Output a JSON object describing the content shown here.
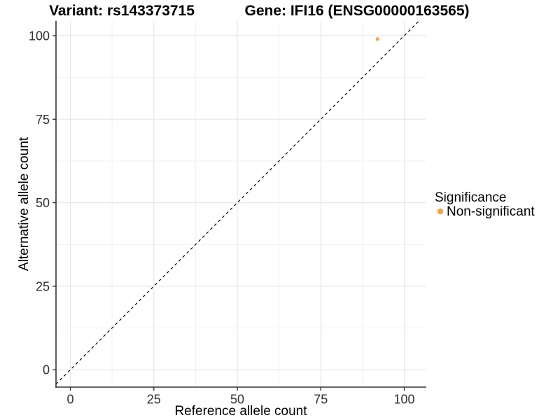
{
  "chart_data": {
    "type": "scatter",
    "titles": [
      {
        "text": "Variant: rs143373715"
      },
      {
        "text": "Gene: IFI16 (ENSG00000163565)"
      }
    ],
    "xlabel": "Reference allele count",
    "ylabel": "Alternative allele count",
    "xlim": [
      -4.3,
      106.6
    ],
    "ylim": [
      -5.2,
      104.4
    ],
    "x_ticks": [
      0,
      25,
      50,
      75,
      100
    ],
    "y_ticks": [
      0,
      25,
      50,
      75,
      100
    ],
    "x_minor_ticks": [
      12.5,
      37.5,
      62.5,
      87.5
    ],
    "y_minor_ticks": [
      12.5,
      37.5,
      62.5,
      87.5
    ],
    "grid": true,
    "points": [
      {
        "x": 92,
        "y": 99,
        "series": "Non-significant",
        "radius": 2.6
      }
    ],
    "identity_line": {
      "slope": 1,
      "intercept": 0,
      "style": "dashed"
    },
    "legend": {
      "title": "Significance",
      "position": "right",
      "items": [
        {
          "label": "Non-significant",
          "color": "#F9A242"
        }
      ]
    },
    "colors": {
      "point_orange": "#F9A242",
      "axis_line": "#333333",
      "tick_label": "#303030",
      "grid_major": "#E7E7E7",
      "grid_minor": "#F1F1F1",
      "dashed_line": "#000000",
      "background": "#FFFFFF"
    }
  }
}
